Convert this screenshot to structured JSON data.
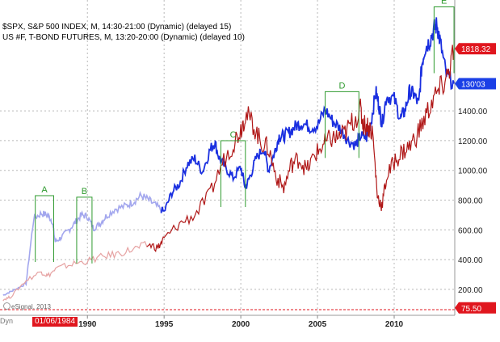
{
  "header": {
    "line1": "$SPX, S&P 500 INDEX, M, 14:30-21:00 (Dynamic) (delayed 15)",
    "line2": "US #F, T-BOND FUTURES, M, 13:20-20:00 (Dynamic) (delayed 10)"
  },
  "footer": {
    "copyright": "eSignal, 2013",
    "dyn_label": "Dyn",
    "date_flag": "01/06/1984"
  },
  "chart_data": {
    "type": "line",
    "x_ticks": [
      "1990",
      "1995",
      "2000",
      "2005",
      "2010"
    ],
    "y_ticks": [
      "200.00",
      "400.00",
      "600.00",
      "800.00",
      "1000.00",
      "1200.00",
      "1400.00"
    ],
    "ylim": [
      75.5,
      1818.32
    ],
    "grid": true,
    "price_flags": [
      {
        "label": "1818.32",
        "value": 1818.32,
        "color": "#e0161e"
      },
      {
        "label": "130'03",
        "value": 1583,
        "color": "#1a3fe6"
      },
      {
        "label": "75.50",
        "value": 75.5,
        "color": "#e0161e"
      }
    ],
    "annotations": [
      {
        "label": "A",
        "from": 1986.6,
        "to": 1987.8
      },
      {
        "label": "B",
        "from": 1989.3,
        "to": 1990.3
      },
      {
        "label": "C",
        "from": 1998.7,
        "to": 2000.3
      },
      {
        "label": "D",
        "from": 2005.5,
        "to": 2007.7
      },
      {
        "label": "E",
        "from": 2012.6,
        "to": 2013.9
      }
    ],
    "series": [
      {
        "name": "$SPX",
        "color": "#1a2fe0",
        "faded_color": "#a3a7ee",
        "faded_until": 1995,
        "x": [
          1984.5,
          1985,
          1985.5,
          1986,
          1986.5,
          1987,
          1987.4,
          1987.7,
          1987.9,
          1988.3,
          1988.8,
          1989.2,
          1989.6,
          1990.0,
          1990.4,
          1990.8,
          1991.2,
          1991.8,
          1992.5,
          1993.0,
          1993.5,
          1994.0,
          1994.5,
          1995.0,
          1995.5,
          1996.0,
          1996.5,
          1997.0,
          1997.5,
          1998.0,
          1998.3,
          1998.6,
          1999.0,
          1999.5,
          2000.0,
          2000.3,
          2000.6,
          2001.0,
          2001.5,
          2001.8,
          2002.2,
          2002.5,
          2002.8,
          2003.2,
          2003.6,
          2004.0,
          2004.5,
          2005.0,
          2005.5,
          2006.0,
          2006.5,
          2007.0,
          2007.5,
          2007.8,
          2008.2,
          2008.5,
          2008.8,
          2009.0,
          2009.2,
          2009.5,
          2010.0,
          2010.4,
          2010.7,
          2011.0,
          2011.3,
          2011.6,
          2011.8,
          2012.0,
          2012.3,
          2012.6,
          2012.8,
          2013.0,
          2013.4,
          2013.9
        ],
        "y": [
          160,
          185,
          210,
          240,
          680,
          710,
          700,
          660,
          520,
          550,
          600,
          650,
          700,
          690,
          610,
          640,
          690,
          740,
          760,
          790,
          830,
          800,
          760,
          720,
          850,
          910,
          1040,
          1080,
          990,
          1140,
          1190,
          1080,
          1020,
          950,
          1020,
          880,
          960,
          1080,
          1150,
          1000,
          1120,
          1230,
          1230,
          1260,
          1300,
          1320,
          1290,
          1300,
          1410,
          1330,
          1280,
          1200,
          1170,
          1230,
          1220,
          1330,
          1530,
          1440,
          1310,
          1500,
          1480,
          1350,
          1400,
          1530,
          1510,
          1440,
          1710,
          1820,
          1870,
          1950,
          1980,
          1860,
          1640,
          1583
        ]
      },
      {
        "name": "US #F",
        "color": "#b01818",
        "faded_color": "#e6a2a2",
        "faded_until": 1994,
        "x": [
          1984.5,
          1985,
          1986,
          1987,
          1987.4,
          1988,
          1989,
          1990,
          1991,
          1992,
          1993,
          1994,
          1994.6,
          1995,
          1996,
          1997,
          1998,
          1998.8,
          1999.5,
          2000.0,
          2000.3,
          2000.8,
          2001.3,
          2001.8,
          2002.3,
          2002.8,
          2003.3,
          2003.8,
          2004.3,
          2004.8,
          2005.3,
          2005.8,
          2006.3,
          2006.8,
          2007.3,
          2007.8,
          2008.0,
          2008.3,
          2008.6,
          2008.9,
          2009.2,
          2009.5,
          2010.0,
          2010.5,
          2011.0,
          2011.5,
          2012.0,
          2012.5,
          2013.0,
          2013.5,
          2013.9
        ],
        "y": [
          130,
          150,
          260,
          320,
          290,
          340,
          370,
          390,
          420,
          440,
          470,
          500,
          480,
          540,
          640,
          700,
          840,
          1050,
          1180,
          1280,
          1380,
          1310,
          1190,
          1150,
          960,
          880,
          1040,
          1080,
          1000,
          1100,
          1160,
          1210,
          1220,
          1250,
          1330,
          1400,
          1310,
          1300,
          1250,
          830,
          760,
          950,
          1060,
          1120,
          1160,
          1240,
          1350,
          1470,
          1540,
          1640,
          1818.32
        ]
      }
    ]
  }
}
